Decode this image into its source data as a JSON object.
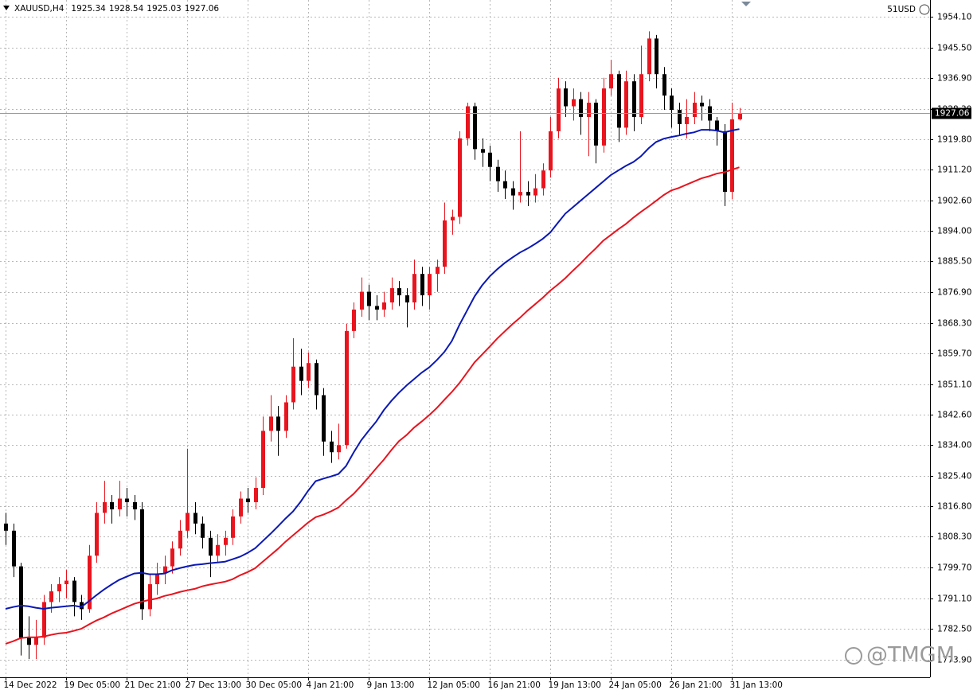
{
  "chart_data": {
    "type": "candlestick",
    "title": "XAUUSD,H4",
    "account": "51USD",
    "watermark": "@TMGM",
    "categories": [
      "14 Dec 2022",
      null,
      null,
      null,
      null,
      null,
      null,
      null,
      "19 Dec 05:00",
      null,
      null,
      null,
      null,
      null,
      null,
      null,
      "21 Dec 21:00",
      null,
      null,
      null,
      null,
      null,
      null,
      null,
      "27 Dec 13:00",
      null,
      null,
      null,
      null,
      null,
      null,
      null,
      "30 Dec 05:00",
      null,
      null,
      null,
      null,
      null,
      null,
      null,
      "4 Jan 21:00",
      null,
      null,
      null,
      null,
      null,
      null,
      null,
      "9 Jan 13:00",
      null,
      null,
      null,
      null,
      null,
      null,
      null,
      "12 Jan 05:00",
      null,
      null,
      null,
      null,
      null,
      null,
      null,
      "16 Jan 21:00",
      null,
      null,
      null,
      null,
      null,
      null,
      null,
      "19 Jan 13:00",
      null,
      null,
      null,
      null,
      null,
      null,
      null,
      "24 Jan 05:00",
      null,
      null,
      null,
      null,
      null,
      null,
      null,
      "26 Jan 21:00",
      null,
      null,
      null,
      null,
      null,
      null,
      null,
      "31 Jan 13:00",
      null
    ],
    "open": [
      1812,
      1810,
      1800,
      1780,
      1778,
      1780,
      1790,
      1793,
      1795,
      1796,
      1790,
      1788,
      1803,
      1815,
      1818,
      1816,
      1819,
      1818,
      1816,
      1788,
      1795,
      1798,
      1800,
      1805,
      1810,
      1815,
      1812,
      1808,
      1803,
      1806,
      1808,
      1814,
      1819,
      1818,
      1822,
      1838,
      1842,
      1838,
      1846,
      1856,
      1852,
      1857,
      1848,
      1835,
      1832,
      1834,
      1866,
      1872,
      1877,
      1873,
      1872,
      1874,
      1878,
      1876,
      1874,
      1882,
      1876,
      1882,
      1884,
      1897,
      1898,
      1920,
      1929,
      1917,
      1916,
      1912,
      1908,
      1906,
      1904,
      1905,
      1904,
      1906,
      1911,
      1922,
      1934,
      1929,
      1931,
      1926,
      1930,
      1918,
      1934,
      1938,
      1923,
      1936,
      1926,
      1938,
      1948,
      1938,
      1932,
      1928,
      1924,
      1926,
      1930,
      1929,
      1925,
      1922,
      1905,
      1925.34
    ],
    "high": [
      1815,
      1812,
      1801,
      1786,
      1785,
      1792,
      1795,
      1797,
      1799,
      1797,
      1792,
      1806,
      1818,
      1824,
      1820,
      1824,
      1822,
      1820,
      1818,
      1798,
      1801,
      1803,
      1807,
      1813,
      1833,
      1818,
      1814,
      1810,
      1809,
      1810,
      1816,
      1821,
      1822,
      1825,
      1842,
      1848,
      1845,
      1848,
      1864,
      1861,
      1860,
      1858,
      1850,
      1838,
      1840,
      1868,
      1874,
      1881,
      1879,
      1876,
      1877,
      1881,
      1880,
      1878,
      1886,
      1884,
      1884,
      1886,
      1902,
      1900,
      1922,
      1930,
      1930,
      1920,
      1918,
      1914,
      1911,
      1908,
      1922,
      1908,
      1910,
      1913,
      1926,
      1937,
      1936,
      1934,
      1933,
      1933,
      1931,
      1937,
      1942,
      1939,
      1939,
      1938,
      1946,
      1950,
      1949,
      1940,
      1934,
      1930,
      1931,
      1933,
      1932,
      1931,
      1926,
      1924,
      1930,
      1928.54
    ],
    "low": [
      1806,
      1797,
      1775,
      1774,
      1774,
      1778,
      1787,
      1790,
      1791,
      1786,
      1785,
      1787,
      1801,
      1812,
      1812,
      1814,
      1814,
      1813,
      1785,
      1786,
      1792,
      1795,
      1798,
      1803,
      1808,
      1809,
      1805,
      1797,
      1801,
      1803,
      1806,
      1812,
      1815,
      1816,
      1820,
      1835,
      1831,
      1836,
      1844,
      1848,
      1850,
      1844,
      1831,
      1829,
      1830,
      1833,
      1864,
      1870,
      1869,
      1869,
      1870,
      1872,
      1873,
      1867,
      1872,
      1873,
      1872,
      1877,
      1882,
      1893,
      1896,
      1918,
      1914,
      1912,
      1908,
      1905,
      1903,
      1900,
      1902,
      1901,
      1902,
      1904,
      1909,
      1920,
      1926,
      1925,
      1921,
      1915,
      1913,
      1916,
      1932,
      1919,
      1921,
      1922,
      1924,
      1936,
      1934,
      1928,
      1923,
      1921,
      1920,
      1924,
      1925,
      1922,
      1918,
      1901,
      1903,
      1925.03
    ],
    "close": [
      1810,
      1800,
      1780,
      1778,
      1780,
      1790,
      1793,
      1795,
      1796,
      1790,
      1788,
      1803,
      1815,
      1818,
      1816,
      1819,
      1818,
      1816,
      1788,
      1795,
      1798,
      1800,
      1805,
      1810,
      1815,
      1812,
      1808,
      1803,
      1806,
      1808,
      1814,
      1819,
      1818,
      1822,
      1838,
      1842,
      1838,
      1846,
      1856,
      1852,
      1857,
      1848,
      1835,
      1832,
      1834,
      1866,
      1872,
      1877,
      1873,
      1872,
      1874,
      1878,
      1876,
      1874,
      1882,
      1876,
      1882,
      1884,
      1897,
      1898,
      1920,
      1929,
      1917,
      1916,
      1912,
      1908,
      1906,
      1904,
      1905,
      1904,
      1906,
      1911,
      1922,
      1934,
      1929,
      1931,
      1926,
      1930,
      1918,
      1934,
      1938,
      1923,
      1936,
      1926,
      1938,
      1948,
      1938,
      1932,
      1928,
      1924,
      1926,
      1930,
      1929,
      1925,
      1922,
      1905,
      1925.34,
      1927.06
    ],
    "up_color": "#e8141e",
    "down_color": "#000000",
    "series": [
      {
        "color": "#0a18b4",
        "values": [
          1788.1,
          1788.6,
          1789.0,
          1788.8,
          1788.4,
          1788.1,
          1788.4,
          1788.6,
          1788.8,
          1789.0,
          1788.6,
          1790.2,
          1791.9,
          1793.5,
          1794.9,
          1796.2,
          1797.1,
          1798.0,
          1798.2,
          1797.8,
          1797.8,
          1798.0,
          1798.9,
          1799.5,
          1800.0,
          1800.4,
          1800.6,
          1800.9,
          1801.1,
          1801.3,
          1802.0,
          1802.7,
          1803.8,
          1805.1,
          1807.1,
          1809.1,
          1811.2,
          1813.4,
          1815.4,
          1818.1,
          1821.2,
          1823.9,
          1824.6,
          1825.2,
          1825.9,
          1828.1,
          1831.9,
          1835.3,
          1838.0,
          1840.6,
          1843.8,
          1846.4,
          1848.7,
          1850.7,
          1852.5,
          1854.3,
          1855.8,
          1857.8,
          1860.1,
          1863.2,
          1867.7,
          1871.7,
          1875.7,
          1878.8,
          1881.3,
          1883.3,
          1885.1,
          1886.6,
          1888.0,
          1889.1,
          1890.4,
          1891.8,
          1893.6,
          1896.3,
          1898.9,
          1900.7,
          1902.5,
          1904.3,
          1906.1,
          1907.9,
          1909.7,
          1911.0,
          1912.3,
          1913.4,
          1915.0,
          1917.2,
          1919.0,
          1919.9,
          1920.4,
          1920.8,
          1921.3,
          1921.7,
          1922.4,
          1922.4,
          1922.2,
          1921.7,
          1922.2,
          1922.6
        ]
      },
      {
        "color": "#e8141e",
        "values": [
          1778.3,
          1779.0,
          1779.9,
          1780.1,
          1780.1,
          1780.3,
          1780.8,
          1781.2,
          1781.4,
          1781.9,
          1782.5,
          1783.7,
          1784.8,
          1785.7,
          1786.8,
          1787.7,
          1788.6,
          1789.5,
          1790.1,
          1790.6,
          1791.0,
          1791.7,
          1792.2,
          1792.8,
          1793.3,
          1793.7,
          1794.4,
          1794.9,
          1795.3,
          1795.7,
          1796.4,
          1797.5,
          1798.4,
          1799.5,
          1801.3,
          1803.1,
          1804.9,
          1806.9,
          1808.7,
          1810.5,
          1812.3,
          1813.8,
          1814.5,
          1815.4,
          1816.5,
          1818.5,
          1820.3,
          1822.6,
          1825.0,
          1827.5,
          1829.9,
          1832.6,
          1835.1,
          1836.8,
          1838.9,
          1840.6,
          1842.4,
          1844.4,
          1846.7,
          1848.9,
          1851.4,
          1854.3,
          1857.2,
          1859.4,
          1861.6,
          1863.9,
          1865.9,
          1867.9,
          1869.7,
          1871.7,
          1873.5,
          1875.3,
          1877.3,
          1879.0,
          1880.8,
          1882.9,
          1884.9,
          1887.1,
          1889.1,
          1891.3,
          1892.9,
          1894.5,
          1896.0,
          1897.8,
          1899.4,
          1900.9,
          1902.5,
          1904.1,
          1905.4,
          1906.1,
          1907.0,
          1907.9,
          1908.8,
          1909.4,
          1910.1,
          1910.5,
          1911.2,
          1911.9
        ]
      }
    ],
    "ylim": [
      1768.9,
      1958.8
    ],
    "yticks": [
      {
        "value": 1954.1,
        "label": "1954.10"
      },
      {
        "value": 1945.5,
        "label": "1945.50"
      },
      {
        "value": 1936.9,
        "label": "1936.90"
      },
      {
        "value": 1928.3,
        "label": "1928.30"
      },
      {
        "value": 1919.8,
        "label": "1919.80"
      },
      {
        "value": 1911.2,
        "label": "1911.20"
      },
      {
        "value": 1902.6,
        "label": "1902.60"
      },
      {
        "value": 1894.0,
        "label": "1894.00"
      },
      {
        "value": 1885.5,
        "label": "1885.50"
      },
      {
        "value": 1876.9,
        "label": "1876.90"
      },
      {
        "value": 1868.3,
        "label": "1868.30"
      },
      {
        "value": 1859.7,
        "label": "1859.70"
      },
      {
        "value": 1851.1,
        "label": "1851.10"
      },
      {
        "value": 1842.6,
        "label": "1842.60"
      },
      {
        "value": 1834.0,
        "label": "1834.00"
      },
      {
        "value": 1825.4,
        "label": "1825.40"
      },
      {
        "value": 1816.8,
        "label": "1816.80"
      },
      {
        "value": 1808.3,
        "label": "1808.30"
      },
      {
        "value": 1799.7,
        "label": "1799.70"
      },
      {
        "value": 1791.1,
        "label": "1791.10"
      },
      {
        "value": 1782.5,
        "label": "1782.50"
      },
      {
        "value": 1773.9,
        "label": "1773.90"
      }
    ],
    "grid": true
  }
}
